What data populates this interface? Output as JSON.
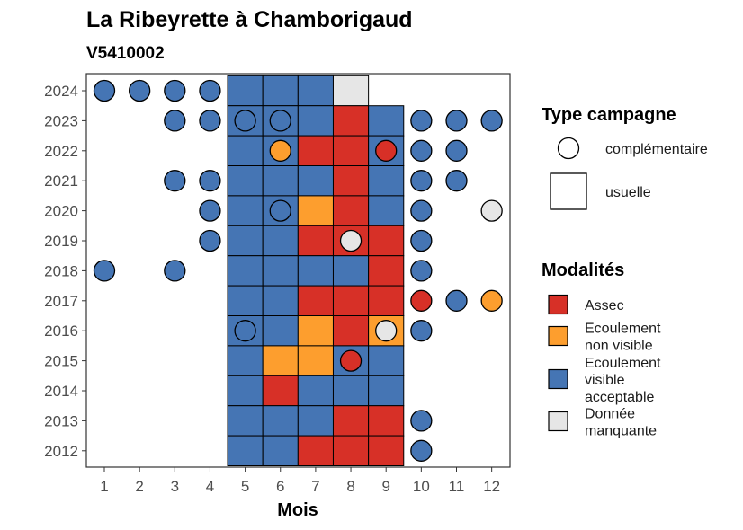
{
  "chart_data": {
    "type": "heatmap",
    "title": "La Ribeyrette à Chamborigaud",
    "subtitle": "V5410002",
    "xlabel": "Mois",
    "ylabel": "",
    "x_ticks": [
      1,
      2,
      3,
      4,
      5,
      6,
      7,
      8,
      9,
      10,
      11,
      12
    ],
    "y_ticks": [
      2012,
      2013,
      2014,
      2015,
      2016,
      2017,
      2018,
      2019,
      2020,
      2021,
      2022,
      2023,
      2024
    ],
    "colors": {
      "assec": "#d73027",
      "non_visible": "#fd9e2e",
      "visible": "#4575b4",
      "manquante": "#e6e6e6"
    },
    "legend_type": {
      "title": "Type campagne",
      "items": [
        {
          "shape": "circle",
          "label": "complémentaire"
        },
        {
          "shape": "square",
          "label": "usuelle"
        }
      ]
    },
    "legend_modalites": {
      "title": "Modalités",
      "items": [
        {
          "key": "assec",
          "lines": [
            "Assec"
          ]
        },
        {
          "key": "non_visible",
          "lines": [
            "Ecoulement",
            "non visible"
          ]
        },
        {
          "key": "visible",
          "lines": [
            "Ecoulement",
            "visible",
            "acceptable"
          ]
        },
        {
          "key": "manquante",
          "lines": [
            "Donnée",
            "manquante"
          ]
        }
      ]
    },
    "usuelle": [
      {
        "year": 2024,
        "month": 5,
        "m": "visible"
      },
      {
        "year": 2024,
        "month": 6,
        "m": "visible"
      },
      {
        "year": 2024,
        "month": 7,
        "m": "visible"
      },
      {
        "year": 2024,
        "month": 8,
        "m": "manquante"
      },
      {
        "year": 2023,
        "month": 5,
        "m": "visible"
      },
      {
        "year": 2023,
        "month": 6,
        "m": "visible"
      },
      {
        "year": 2023,
        "month": 7,
        "m": "visible"
      },
      {
        "year": 2023,
        "month": 8,
        "m": "assec"
      },
      {
        "year": 2023,
        "month": 9,
        "m": "visible"
      },
      {
        "year": 2022,
        "month": 5,
        "m": "visible"
      },
      {
        "year": 2022,
        "month": 6,
        "m": "visible"
      },
      {
        "year": 2022,
        "month": 7,
        "m": "assec"
      },
      {
        "year": 2022,
        "month": 8,
        "m": "assec"
      },
      {
        "year": 2022,
        "month": 9,
        "m": "visible"
      },
      {
        "year": 2021,
        "month": 5,
        "m": "visible"
      },
      {
        "year": 2021,
        "month": 6,
        "m": "visible"
      },
      {
        "year": 2021,
        "month": 7,
        "m": "visible"
      },
      {
        "year": 2021,
        "month": 8,
        "m": "assec"
      },
      {
        "year": 2021,
        "month": 9,
        "m": "visible"
      },
      {
        "year": 2020,
        "month": 5,
        "m": "visible"
      },
      {
        "year": 2020,
        "month": 6,
        "m": "visible"
      },
      {
        "year": 2020,
        "month": 7,
        "m": "non_visible"
      },
      {
        "year": 2020,
        "month": 8,
        "m": "assec"
      },
      {
        "year": 2020,
        "month": 9,
        "m": "visible"
      },
      {
        "year": 2019,
        "month": 5,
        "m": "visible"
      },
      {
        "year": 2019,
        "month": 6,
        "m": "visible"
      },
      {
        "year": 2019,
        "month": 7,
        "m": "assec"
      },
      {
        "year": 2019,
        "month": 8,
        "m": "assec"
      },
      {
        "year": 2019,
        "month": 9,
        "m": "assec"
      },
      {
        "year": 2018,
        "month": 5,
        "m": "visible"
      },
      {
        "year": 2018,
        "month": 6,
        "m": "visible"
      },
      {
        "year": 2018,
        "month": 7,
        "m": "visible"
      },
      {
        "year": 2018,
        "month": 8,
        "m": "visible"
      },
      {
        "year": 2018,
        "month": 9,
        "m": "assec"
      },
      {
        "year": 2017,
        "month": 5,
        "m": "visible"
      },
      {
        "year": 2017,
        "month": 6,
        "m": "visible"
      },
      {
        "year": 2017,
        "month": 7,
        "m": "assec"
      },
      {
        "year": 2017,
        "month": 8,
        "m": "assec"
      },
      {
        "year": 2017,
        "month": 9,
        "m": "assec"
      },
      {
        "year": 2016,
        "month": 5,
        "m": "visible"
      },
      {
        "year": 2016,
        "month": 6,
        "m": "visible"
      },
      {
        "year": 2016,
        "month": 7,
        "m": "non_visible"
      },
      {
        "year": 2016,
        "month": 8,
        "m": "assec"
      },
      {
        "year": 2016,
        "month": 9,
        "m": "non_visible"
      },
      {
        "year": 2015,
        "month": 5,
        "m": "visible"
      },
      {
        "year": 2015,
        "month": 6,
        "m": "non_visible"
      },
      {
        "year": 2015,
        "month": 7,
        "m": "non_visible"
      },
      {
        "year": 2015,
        "month": 8,
        "m": "visible"
      },
      {
        "year": 2015,
        "month": 9,
        "m": "visible"
      },
      {
        "year": 2014,
        "month": 5,
        "m": "visible"
      },
      {
        "year": 2014,
        "month": 6,
        "m": "assec"
      },
      {
        "year": 2014,
        "month": 7,
        "m": "visible"
      },
      {
        "year": 2014,
        "month": 8,
        "m": "visible"
      },
      {
        "year": 2014,
        "month": 9,
        "m": "visible"
      },
      {
        "year": 2013,
        "month": 5,
        "m": "visible"
      },
      {
        "year": 2013,
        "month": 6,
        "m": "visible"
      },
      {
        "year": 2013,
        "month": 7,
        "m": "visible"
      },
      {
        "year": 2013,
        "month": 8,
        "m": "assec"
      },
      {
        "year": 2013,
        "month": 9,
        "m": "assec"
      },
      {
        "year": 2012,
        "month": 5,
        "m": "visible"
      },
      {
        "year": 2012,
        "month": 6,
        "m": "visible"
      },
      {
        "year": 2012,
        "month": 7,
        "m": "assec"
      },
      {
        "year": 2012,
        "month": 8,
        "m": "assec"
      },
      {
        "year": 2012,
        "month": 9,
        "m": "assec"
      }
    ],
    "complementaire": [
      {
        "year": 2024,
        "month": 1,
        "m": "visible"
      },
      {
        "year": 2024,
        "month": 2,
        "m": "visible"
      },
      {
        "year": 2024,
        "month": 3,
        "m": "visible"
      },
      {
        "year": 2024,
        "month": 4,
        "m": "visible"
      },
      {
        "year": 2023,
        "month": 3,
        "m": "visible"
      },
      {
        "year": 2023,
        "month": 4,
        "m": "visible"
      },
      {
        "year": 2023,
        "month": 5,
        "m": "visible"
      },
      {
        "year": 2023,
        "month": 6,
        "m": "visible"
      },
      {
        "year": 2023,
        "month": 10,
        "m": "visible"
      },
      {
        "year": 2023,
        "month": 11,
        "m": "visible"
      },
      {
        "year": 2023,
        "month": 12,
        "m": "visible"
      },
      {
        "year": 2022,
        "month": 6,
        "m": "non_visible"
      },
      {
        "year": 2022,
        "month": 9,
        "m": "assec"
      },
      {
        "year": 2022,
        "month": 10,
        "m": "visible"
      },
      {
        "year": 2022,
        "month": 11,
        "m": "visible"
      },
      {
        "year": 2021,
        "month": 3,
        "m": "visible"
      },
      {
        "year": 2021,
        "month": 4,
        "m": "visible"
      },
      {
        "year": 2021,
        "month": 10,
        "m": "visible"
      },
      {
        "year": 2021,
        "month": 11,
        "m": "visible"
      },
      {
        "year": 2020,
        "month": 4,
        "m": "visible"
      },
      {
        "year": 2020,
        "month": 6,
        "m": "visible"
      },
      {
        "year": 2020,
        "month": 10,
        "m": "visible"
      },
      {
        "year": 2020,
        "month": 12,
        "m": "manquante"
      },
      {
        "year": 2019,
        "month": 4,
        "m": "visible"
      },
      {
        "year": 2019,
        "month": 8,
        "m": "manquante"
      },
      {
        "year": 2019,
        "month": 10,
        "m": "visible"
      },
      {
        "year": 2018,
        "month": 1,
        "m": "visible"
      },
      {
        "year": 2018,
        "month": 3,
        "m": "visible"
      },
      {
        "year": 2018,
        "month": 10,
        "m": "visible"
      },
      {
        "year": 2017,
        "month": 10,
        "m": "assec"
      },
      {
        "year": 2017,
        "month": 11,
        "m": "visible"
      },
      {
        "year": 2017,
        "month": 12,
        "m": "non_visible"
      },
      {
        "year": 2016,
        "month": 5,
        "m": "visible"
      },
      {
        "year": 2016,
        "month": 9,
        "m": "manquante"
      },
      {
        "year": 2016,
        "month": 10,
        "m": "visible"
      },
      {
        "year": 2015,
        "month": 8,
        "m": "assec"
      },
      {
        "year": 2013,
        "month": 10,
        "m": "visible"
      },
      {
        "year": 2012,
        "month": 10,
        "m": "visible"
      }
    ]
  }
}
